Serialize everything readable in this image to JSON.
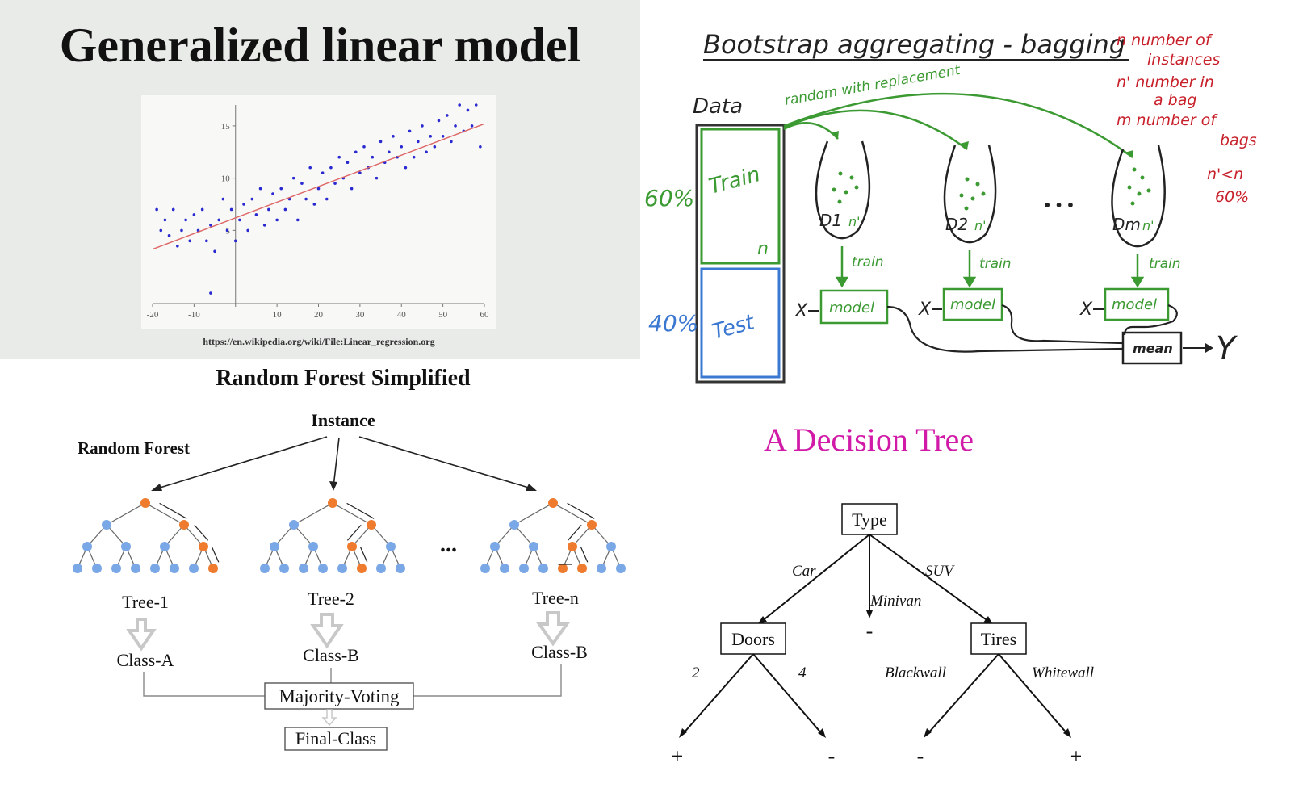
{
  "glm": {
    "title": "Generalized linear model",
    "source": "https://en.wikipedia.org/wiki/File:Linear_regression.org",
    "chart_data": {
      "type": "scatter",
      "x_ticks": [
        -20,
        -10,
        10,
        20,
        30,
        40,
        50,
        60
      ],
      "y_ticks": [
        5,
        10,
        15
      ],
      "xlim": [
        -20,
        60
      ],
      "ylim": [
        -2,
        17
      ],
      "points": [
        [
          -18,
          5
        ],
        [
          -17,
          6
        ],
        [
          -16,
          4.5
        ],
        [
          -15,
          7
        ],
        [
          -14,
          3.5
        ],
        [
          -13,
          5
        ],
        [
          -12,
          6
        ],
        [
          -11,
          4
        ],
        [
          -10,
          6.5
        ],
        [
          -9,
          5
        ],
        [
          -8,
          7
        ],
        [
          -7,
          4
        ],
        [
          -6,
          5.5
        ],
        [
          -5,
          3
        ],
        [
          -4,
          6
        ],
        [
          -3,
          8
        ],
        [
          -2,
          5
        ],
        [
          -1,
          7
        ],
        [
          0,
          4
        ],
        [
          1,
          6
        ],
        [
          2,
          7.5
        ],
        [
          3,
          5
        ],
        [
          4,
          8
        ],
        [
          5,
          6.5
        ],
        [
          6,
          9
        ],
        [
          7,
          5.5
        ],
        [
          8,
          7
        ],
        [
          9,
          8.5
        ],
        [
          10,
          6
        ],
        [
          11,
          9
        ],
        [
          12,
          7
        ],
        [
          13,
          8
        ],
        [
          14,
          10
        ],
        [
          15,
          6
        ],
        [
          16,
          9.5
        ],
        [
          17,
          8
        ],
        [
          18,
          11
        ],
        [
          19,
          7.5
        ],
        [
          20,
          9
        ],
        [
          21,
          10.5
        ],
        [
          22,
          8
        ],
        [
          23,
          11
        ],
        [
          24,
          9.5
        ],
        [
          25,
          12
        ],
        [
          26,
          10
        ],
        [
          27,
          11.5
        ],
        [
          28,
          9
        ],
        [
          29,
          12.5
        ],
        [
          30,
          10.5
        ],
        [
          31,
          13
        ],
        [
          32,
          11
        ],
        [
          33,
          12
        ],
        [
          34,
          10
        ],
        [
          35,
          13.5
        ],
        [
          36,
          11.5
        ],
        [
          37,
          12.5
        ],
        [
          38,
          14
        ],
        [
          39,
          12
        ],
        [
          40,
          13
        ],
        [
          41,
          11
        ],
        [
          42,
          14.5
        ],
        [
          43,
          12
        ],
        [
          44,
          13.5
        ],
        [
          45,
          15
        ],
        [
          46,
          12.5
        ],
        [
          47,
          14
        ],
        [
          48,
          13
        ],
        [
          49,
          15.5
        ],
        [
          50,
          14
        ],
        [
          51,
          16
        ],
        [
          52,
          13.5
        ],
        [
          53,
          15
        ],
        [
          54,
          17
        ],
        [
          55,
          14.5
        ],
        [
          56,
          16.5
        ],
        [
          57,
          15
        ],
        [
          58,
          17
        ],
        [
          59,
          13
        ],
        [
          -19,
          7
        ],
        [
          -6,
          -1
        ]
      ],
      "trend": {
        "x": [
          -20,
          60
        ],
        "y": [
          3.2,
          15.2
        ]
      }
    }
  },
  "bagging": {
    "title": "Bootstrap aggregating - bagging",
    "data_label": "Data",
    "random_label": "random with replacement",
    "pct_train": "60%",
    "pct_test": "40%",
    "train_label": "Train",
    "test_label": "Test",
    "n_label": "n",
    "bags": [
      {
        "label": "D1",
        "nprime": "n'",
        "train": "train",
        "model": "model",
        "x": "X"
      },
      {
        "label": "D2",
        "nprime": "n'",
        "train": "train",
        "model": "model",
        "x": "X"
      },
      {
        "label": "Dm",
        "nprime": "n'",
        "train": "train",
        "model": "model",
        "x": "X"
      }
    ],
    "ellipsis": "• • •",
    "mean_label": "mean",
    "y_label": "Y",
    "notes": [
      "n  number of",
      "instances",
      "n'  number in",
      "a bag",
      "m  number of",
      "bags",
      "n'<n",
      "60%"
    ]
  },
  "random_forest": {
    "title": "Random Forest Simplified",
    "instance": "Instance",
    "rf_label": "Random Forest",
    "ellipsis": "...",
    "trees": [
      {
        "name": "Tree-1",
        "class": "Class-A"
      },
      {
        "name": "Tree-2",
        "class": "Class-B"
      },
      {
        "name": "Tree-n",
        "class": "Class-B"
      }
    ],
    "voting": "Majority-Voting",
    "final": "Final-Class",
    "colors": {
      "node": "#7aa7e6",
      "active": "#ee7b2e",
      "arrow": "#c8c8c8"
    }
  },
  "decision_tree": {
    "title": "A Decision Tree",
    "title_color": "#d11ba8",
    "root": "Type",
    "edges": {
      "car": "Car",
      "minivan": "Minivan",
      "suv": "SUV",
      "two": "2",
      "four": "4",
      "blackwall": "Blackwall",
      "whitewall": "Whitewall"
    },
    "doors": "Doors",
    "tires": "Tires",
    "minivan_leaf": "-",
    "leaves": [
      "+",
      "-",
      "-",
      "+"
    ]
  }
}
